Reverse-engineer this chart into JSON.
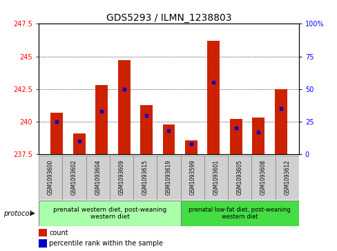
{
  "title": "GDS5293 / ILMN_1238803",
  "samples": [
    "GSM1093600",
    "GSM1093602",
    "GSM1093604",
    "GSM1093609",
    "GSM1093615",
    "GSM1093619",
    "GSM1093599",
    "GSM1093601",
    "GSM1093605",
    "GSM1093608",
    "GSM1093612"
  ],
  "count_values": [
    240.7,
    239.1,
    242.8,
    244.7,
    241.3,
    239.8,
    238.55,
    246.2,
    240.2,
    240.3,
    242.5
  ],
  "percentile_values": [
    25,
    10,
    33,
    50,
    30,
    18,
    8,
    55,
    20,
    17,
    35
  ],
  "ylim_left": [
    237.5,
    247.5
  ],
  "ylim_right": [
    0,
    100
  ],
  "yticks_left": [
    237.5,
    240.0,
    242.5,
    245.0,
    247.5
  ],
  "yticks_right": [
    0,
    25,
    50,
    75,
    100
  ],
  "bar_color": "#cc2200",
  "percentile_color": "#0000cc",
  "bar_base": 237.5,
  "group1_label": "prenatal western diet, post-weaning\nwestern diet",
  "group2_label": "prenatal low-fat diet, post-weaning\nwestern diet",
  "group1_count": 6,
  "group2_count": 5,
  "group1_color": "#aaffaa",
  "group2_color": "#44dd44",
  "protocol_label": "protocol",
  "legend_count_label": "count",
  "legend_pct_label": "percentile rank within the sample",
  "title_fontsize": 10,
  "tick_fontsize": 7,
  "xtick_fontsize": 5.5
}
